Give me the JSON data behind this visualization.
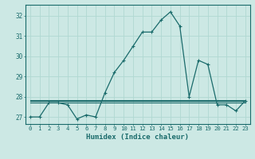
{
  "title": "",
  "xlabel": "Humidex (Indice chaleur)",
  "bg_color": "#cce8e4",
  "grid_color": "#b0d8d2",
  "line_color": "#1a6b6b",
  "xlim": [
    -0.5,
    23.5
  ],
  "ylim": [
    26.65,
    32.55
  ],
  "yticks": [
    27,
    28,
    29,
    30,
    31,
    32
  ],
  "xticks": [
    0,
    1,
    2,
    3,
    4,
    5,
    6,
    7,
    8,
    9,
    10,
    11,
    12,
    13,
    14,
    15,
    16,
    17,
    18,
    19,
    20,
    21,
    22,
    23
  ],
  "main_series": [
    27.0,
    27.0,
    27.7,
    27.7,
    27.6,
    26.9,
    27.1,
    27.0,
    28.2,
    29.2,
    29.8,
    30.5,
    31.2,
    31.2,
    31.8,
    32.2,
    31.5,
    28.0,
    29.8,
    29.6,
    27.6,
    27.6,
    27.3,
    27.8
  ],
  "flat_line1": [
    27.78,
    27.78,
    27.78,
    27.78,
    27.78,
    27.78,
    27.78,
    27.78,
    27.78,
    27.78,
    27.78,
    27.78,
    27.78,
    27.78,
    27.78,
    27.78,
    27.78,
    27.78,
    27.78,
    27.78,
    27.78,
    27.78,
    27.78,
    27.78
  ],
  "flat_line2": [
    27.72,
    27.72,
    27.72,
    27.72,
    27.72,
    27.72,
    27.72,
    27.72,
    27.72,
    27.72,
    27.72,
    27.72,
    27.72,
    27.72,
    27.72,
    27.72,
    27.72,
    27.72,
    27.72,
    27.72,
    27.72,
    27.72,
    27.72,
    27.72
  ],
  "flat_line3": [
    27.84,
    27.84,
    27.84,
    27.84,
    27.84,
    27.84,
    27.84,
    27.84,
    27.84,
    27.84,
    27.84,
    27.84,
    27.84,
    27.84,
    27.84,
    27.84,
    27.84,
    27.84,
    27.84,
    27.84,
    27.84,
    27.84,
    27.84,
    27.84
  ],
  "fig_width": 3.2,
  "fig_height": 2.0,
  "dpi": 100
}
